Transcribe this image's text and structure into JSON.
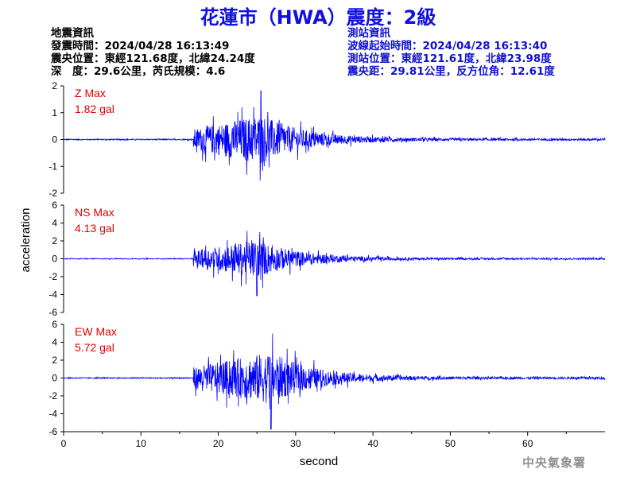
{
  "title": "花蓮市（HWA）震度：2級",
  "earthquake_info": {
    "heading": "地震資訊",
    "origin_time": "發震時間：2024/04/28 16:13:49",
    "epicenter": "震央位置：東經121.68度，北緯24.24度",
    "depth_magnitude": "深　度：29.6公里，芮氏規模：4.6"
  },
  "station_info": {
    "heading": "測站資訊",
    "wave_start": "波線起始時間：2024/04/28 16:13:40",
    "location": "測站位置：東經121.61度，北緯23.98度",
    "distance": "震央距：29.81公里，反方位角：12.61度"
  },
  "agency": "中央氣象署",
  "colors": {
    "trace": "#0000ff",
    "max_label": "#e00000",
    "title": "#1010e0",
    "station_text": "#1010d0"
  },
  "chart_data": {
    "type": "line",
    "xlabel": "second",
    "ylabel": "acceleration",
    "xlim": [
      0,
      70
    ],
    "x_ticks": [
      0,
      10,
      20,
      30,
      40,
      50,
      60
    ],
    "duration_s": 70,
    "signal_onset_s": 16.8,
    "panels": [
      {
        "component": "Z",
        "label": "Z Max",
        "max_text": "1.82 gal",
        "max_gal": 1.82,
        "ylim": [
          -2,
          2
        ],
        "y_ticks": [
          -2,
          -1,
          0,
          1,
          2
        ],
        "peak_time_s": 25.5
      },
      {
        "component": "NS",
        "label": "NS Max",
        "max_text": "4.13 gal",
        "max_gal": 4.13,
        "ylim": [
          -6,
          6
        ],
        "y_ticks": [
          -6,
          -4,
          -2,
          0,
          2,
          4,
          6
        ],
        "peak_time_s": 25.0
      },
      {
        "component": "EW",
        "label": "EW Max",
        "max_text": "5.72 gal",
        "max_gal": 5.72,
        "ylim": [
          -6,
          6
        ],
        "y_ticks": [
          -6,
          -4,
          -2,
          0,
          2,
          4,
          6
        ],
        "peak_time_s": 26.8
      }
    ]
  }
}
